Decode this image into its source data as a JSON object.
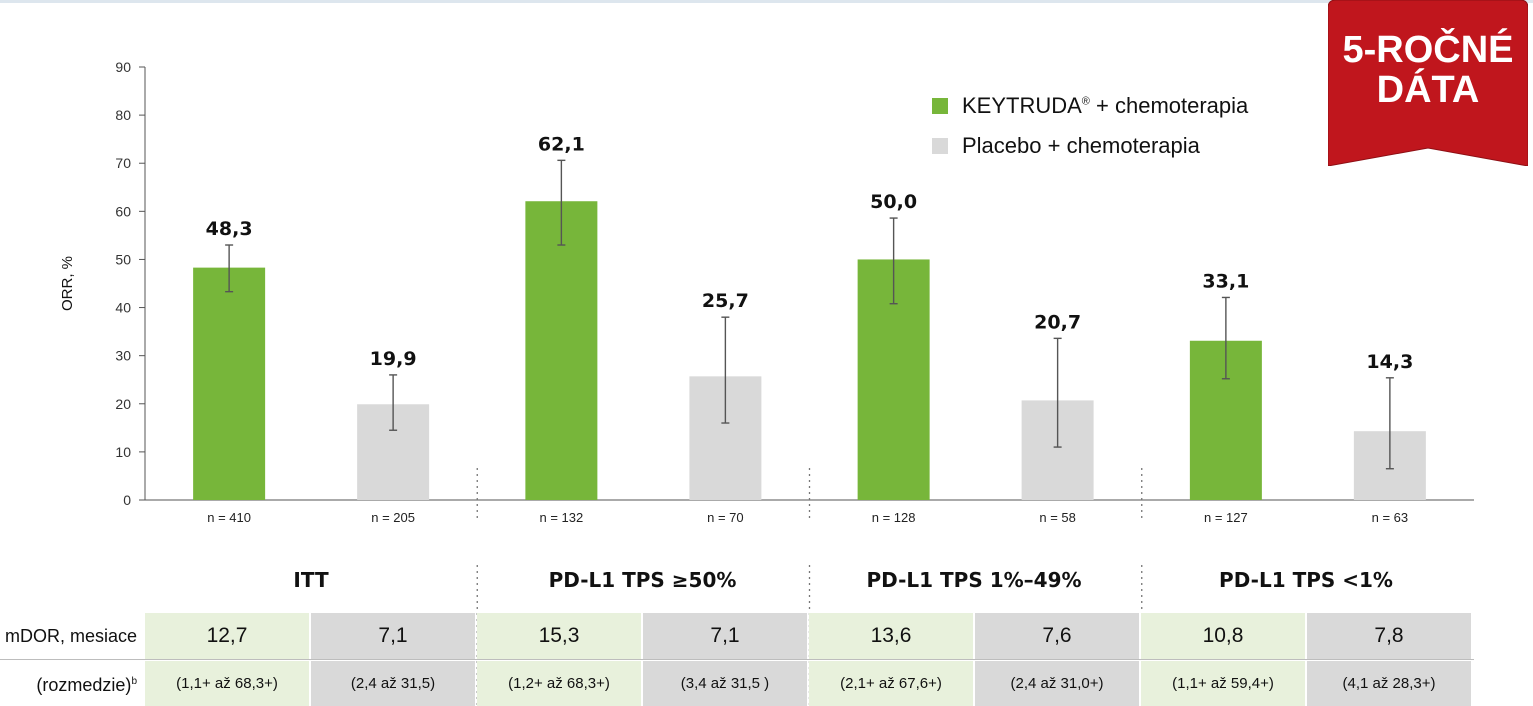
{
  "badge": {
    "line1": "5-ROČNÉ",
    "line2": "DÁTA"
  },
  "legend": [
    {
      "label": "KEYTRUDA",
      "sup": "®",
      "suffix": " + chemoterapia",
      "color": "#77b63a"
    },
    {
      "label": "Placebo + chemoterapia",
      "sup": "",
      "suffix": "",
      "color": "#d9d9d9"
    }
  ],
  "chart_data": {
    "type": "bar",
    "ylabel": "ORR, %",
    "ylim": [
      0,
      90
    ],
    "yticks": [
      0,
      10,
      20,
      30,
      40,
      50,
      60,
      70,
      80,
      90
    ],
    "groups": [
      "ITT",
      "PD-L1 TPS ≥50%",
      "PD-L1 TPS 1%–49%",
      "PD-L1 TPS <1%"
    ],
    "series": [
      {
        "name": "KEYTRUDA® + chemoterapia",
        "color": "#77b63a",
        "values": [
          48.3,
          62.1,
          50.0,
          33.1
        ],
        "labels": [
          "48,3",
          "62,1",
          "50,0",
          "33,1"
        ],
        "ci": [
          [
            43.3,
            53.0
          ],
          [
            53.0,
            70.6
          ],
          [
            40.8,
            58.6
          ],
          [
            25.2,
            42.1
          ]
        ],
        "n": [
          "n = 410",
          "n = 132",
          "n = 128",
          "n = 127"
        ]
      },
      {
        "name": "Placebo + chemoterapia",
        "color": "#d9d9d9",
        "values": [
          19.9,
          25.7,
          20.7,
          14.3
        ],
        "labels": [
          "19,9",
          "25,7",
          "20,7",
          "14,3"
        ],
        "ci": [
          [
            14.5,
            26.0
          ],
          [
            16.0,
            38.0
          ],
          [
            11.0,
            33.6
          ],
          [
            6.5,
            25.4
          ]
        ],
        "n": [
          "n = 205",
          "n = 70",
          "n = 58",
          "n = 63"
        ]
      }
    ]
  },
  "table": {
    "row1_label": "mDOR, mesiace",
    "row2_label": "(rozmedzie)",
    "row2_sup": "b",
    "mdor": [
      "12,7",
      "7,1",
      "15,3",
      "7,1",
      "13,6",
      "7,6",
      "10,8",
      "7,8"
    ],
    "ranges": [
      "(1,1+ až 68,3+)",
      "(2,4 až 31,5)",
      "(1,2+ až 68,3+)",
      "(3,4 až 31,5 )",
      "(2,1+ až 67,6+)",
      "(2,4 až 31,0+)",
      "(1,1+ až 59,4+)",
      "(4,1 až 28,3+)"
    ]
  }
}
